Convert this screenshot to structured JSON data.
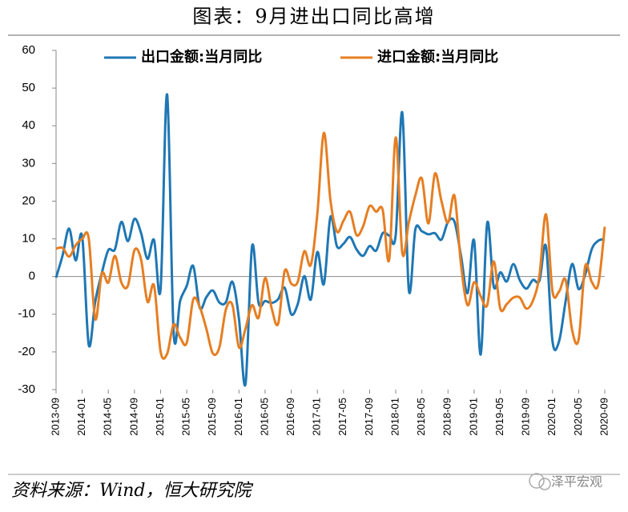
{
  "chart_data": {
    "type": "line",
    "title": "图表：9月进出口同比高增",
    "categories": [
      "2013-09",
      null,
      null,
      null,
      "2014-01",
      null,
      null,
      null,
      "2014-05",
      null,
      null,
      null,
      "2014-09",
      null,
      null,
      null,
      "2015-01",
      null,
      null,
      null,
      "2015-05",
      null,
      null,
      null,
      "2015-09",
      null,
      null,
      null,
      "2016-01",
      null,
      null,
      null,
      "2016-05",
      null,
      null,
      null,
      "2016-09",
      null,
      null,
      null,
      "2017-01",
      null,
      null,
      null,
      "2017-05",
      null,
      null,
      null,
      "2017-09",
      null,
      null,
      null,
      "2018-01",
      null,
      null,
      null,
      "2018-05",
      null,
      null,
      null,
      "2018-09",
      null,
      null,
      null,
      "2019-01",
      null,
      null,
      null,
      "2019-05",
      null,
      null,
      null,
      "2019-09",
      null,
      null,
      null,
      "2020-01",
      null,
      null,
      null,
      "2020-05",
      null,
      null,
      null,
      "2020-09"
    ],
    "series": [
      {
        "name": "出口金额:当月同比",
        "color": "#1f77b4",
        "values": [
          -0.3,
          5.6,
          12.7,
          4.3,
          10.6,
          -18.1,
          -6.6,
          0.9,
          7.0,
          7.2,
          14.5,
          9.4,
          15.3,
          11.6,
          4.7,
          9.7,
          -3.3,
          48.3,
          -15.0,
          -6.4,
          -2.5,
          2.8,
          -8.3,
          -5.5,
          -3.7,
          -6.9,
          -6.8,
          -1.4,
          -11.2,
          -28.5,
          8.0,
          -7.0,
          -6.5,
          -7.0,
          -6.0,
          -3.0,
          -10.0,
          -7.3,
          0.1,
          -6.1,
          6.5,
          -2.0,
          15.8,
          8.0,
          8.7,
          10.5,
          7.2,
          5.5,
          8.1,
          6.9,
          11.5,
          10.9,
          11.1,
          43.5,
          -3.5,
          12.5,
          12.0,
          11.2,
          11.5,
          9.8,
          14.5,
          14.5,
          5.4,
          -4.4,
          9.5,
          -20.7,
          14.2,
          -2.7,
          1.1,
          -1.3,
          3.3,
          -1.0,
          -3.2,
          -0.9,
          -1.1,
          8.0,
          -17.2,
          -17.2,
          -6.6,
          3.3,
          -3.3,
          0.5,
          7.2,
          9.5,
          9.9
        ]
      },
      {
        "name": "进口金额:当月同比",
        "color": "#e67e22",
        "values": [
          7.4,
          7.6,
          5.3,
          8.3,
          10.0,
          10.1,
          -11.3,
          0.8,
          -1.6,
          5.5,
          -1.6,
          -2.4,
          7.0,
          4.6,
          -6.7,
          -2.4,
          -19.9,
          -20.5,
          -12.7,
          -16.2,
          -17.6,
          -6.1,
          -8.1,
          -13.8,
          -20.4,
          -18.8,
          -8.7,
          -7.6,
          -18.8,
          -13.8,
          -7.6,
          -10.9,
          -0.4,
          -8.4,
          -12.5,
          1.5,
          -1.9,
          -1.4,
          6.7,
          3.1,
          16.7,
          38.1,
          20.3,
          11.9,
          14.8,
          17.2,
          11.0,
          13.3,
          18.7,
          17.2,
          17.7,
          4.5,
          36.9,
          6.3,
          14.4,
          21.5,
          26.0,
          14.1,
          27.3,
          20.0,
          14.3,
          21.4,
          3.0,
          -7.6,
          -1.5,
          -5.2,
          -7.6,
          4.0,
          -8.5,
          -7.3,
          -5.6,
          -5.6,
          -8.5,
          -6.4,
          0.3,
          16.5,
          -4.0,
          -4.0,
          -0.9,
          -14.2,
          -16.7,
          2.7,
          -1.4,
          -2.1,
          13.2
        ]
      }
    ],
    "ylim": [
      -30,
      60
    ],
    "yticks": [
      -30,
      -20,
      -10,
      0,
      10,
      20,
      30,
      40,
      50,
      60
    ],
    "grid": false,
    "legend": "top"
  },
  "source": "资料来源：Wind，恒大研究院",
  "watermark": "泽平宏观"
}
